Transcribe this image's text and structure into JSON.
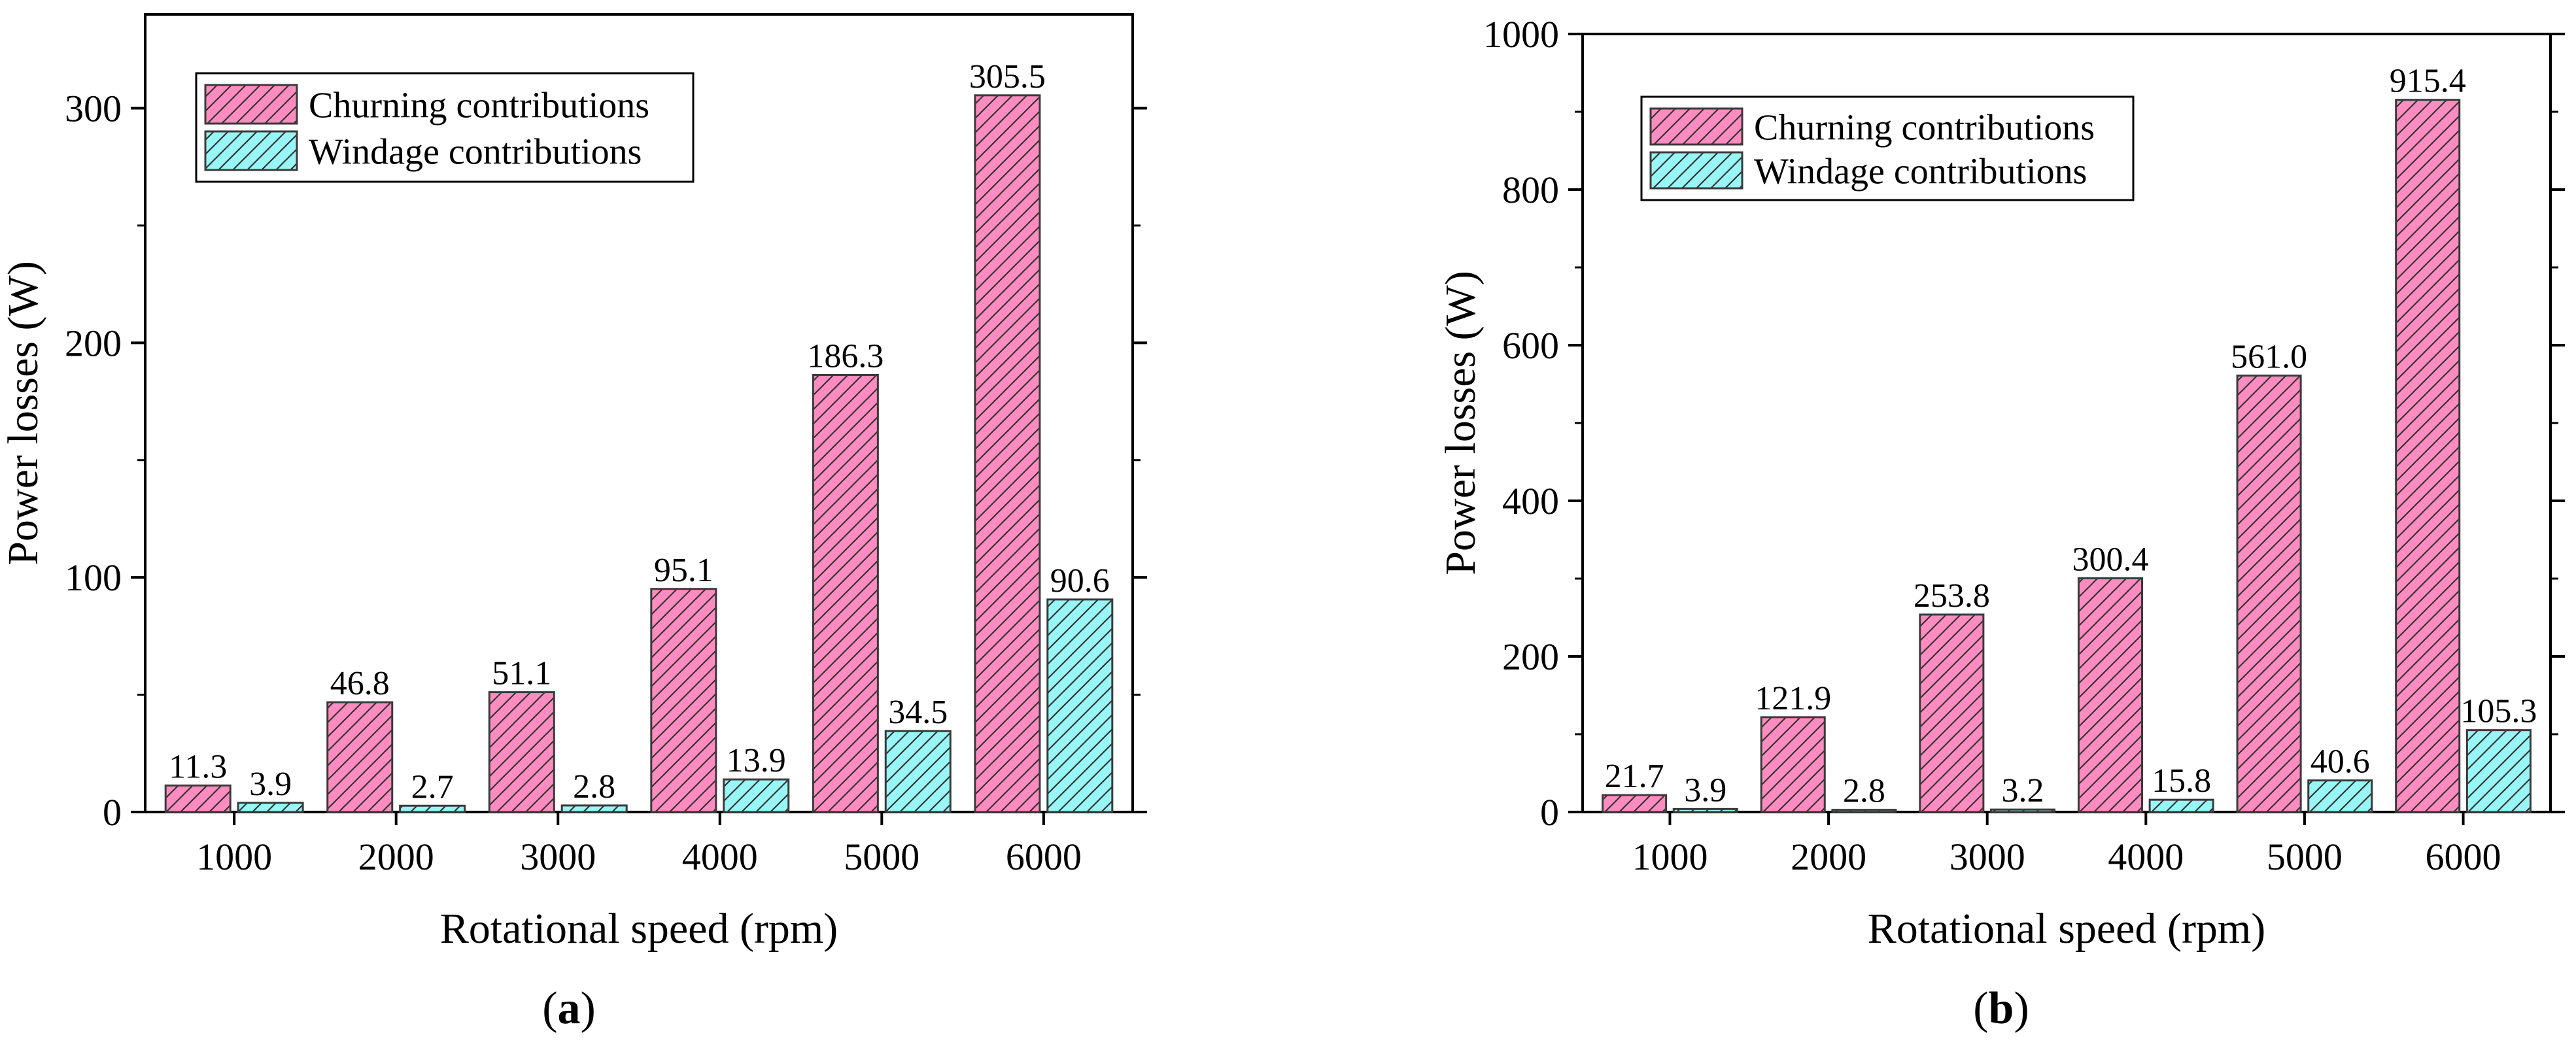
{
  "colors": {
    "churning_fill": "#ff8cc0",
    "windage_fill": "#99f6f6",
    "bar_stroke": "#3a3a3a",
    "hatch": "#333333"
  },
  "chart_data": [
    {
      "type": "bar",
      "panel_label_open": "(",
      "panel_label_letter": "a",
      "panel_label_close": ")",
      "title": "",
      "xlabel": "Rotational speed (rpm)",
      "ylabel": "Power losses (W)",
      "categories": [
        "1000",
        "2000",
        "3000",
        "4000",
        "5000",
        "6000"
      ],
      "ylim": [
        0,
        340
      ],
      "yticks": [
        0,
        100,
        200,
        300
      ],
      "ytick_labels": [
        "0",
        "100",
        "200",
        "300"
      ],
      "legend_position": "top-left",
      "series": [
        {
          "name": "Churning contributions",
          "values": [
            11.3,
            46.8,
            51.1,
            95.1,
            186.3,
            305.5
          ],
          "labels": [
            "11.3",
            "46.8",
            "51.1",
            "95.1",
            "186.3",
            "305.5"
          ]
        },
        {
          "name": "Windage contributions",
          "values": [
            3.9,
            2.7,
            2.8,
            13.9,
            34.5,
            90.6
          ],
          "labels": [
            "3.9",
            "2.7",
            "2.8",
            "13.9",
            "34.5",
            "90.6"
          ]
        }
      ]
    },
    {
      "type": "bar",
      "panel_label_open": "(",
      "panel_label_letter": "b",
      "panel_label_close": ")",
      "title": "",
      "xlabel": "Rotational speed (rpm)",
      "ylabel": "Power losses (W)",
      "categories": [
        "1000",
        "2000",
        "3000",
        "4000",
        "5000",
        "6000"
      ],
      "ylim": [
        0,
        1000
      ],
      "yticks": [
        0,
        200,
        400,
        600,
        800,
        1000
      ],
      "ytick_labels": [
        "0",
        "200",
        "400",
        "600",
        "800",
        "1000"
      ],
      "legend_position": "top-left",
      "series": [
        {
          "name": "Churning contributions",
          "values": [
            21.7,
            121.9,
            253.8,
            300.4,
            561.0,
            915.4
          ],
          "labels": [
            "21.7",
            "121.9",
            "253.8",
            "300.4",
            "561.0",
            "915.4"
          ]
        },
        {
          "name": "Windage contributions",
          "values": [
            3.9,
            2.8,
            3.2,
            15.8,
            40.6,
            105.3
          ],
          "labels": [
            "3.9",
            "2.8",
            "3.2",
            "15.8",
            "40.6",
            "105.3"
          ]
        }
      ]
    }
  ]
}
